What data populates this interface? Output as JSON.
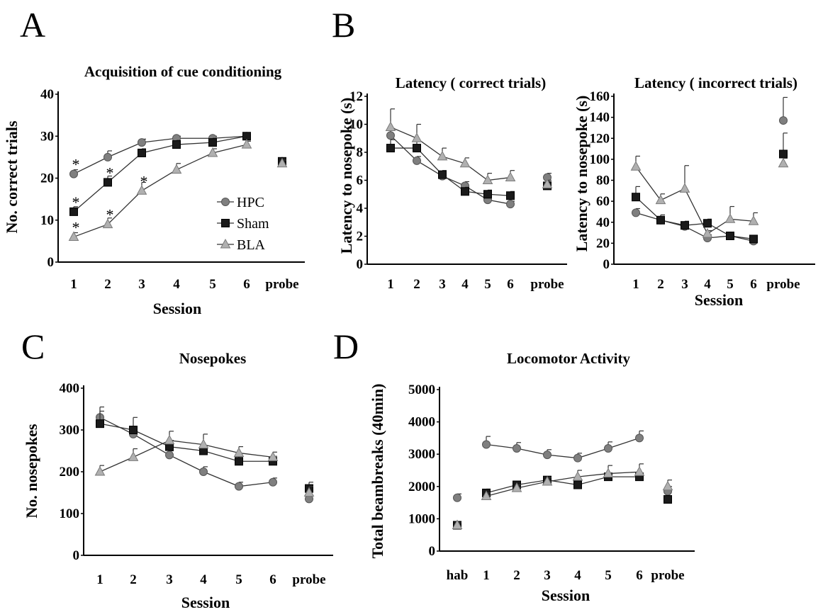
{
  "chart_data": [
    {
      "panel": "A",
      "type": "line",
      "title": "Acquisition of  cue conditioning",
      "xlabel": "Session",
      "ylabel": "No. correct trials",
      "categories": [
        "1",
        "2",
        "3",
        "4",
        "5",
        "6",
        "probe"
      ],
      "ylim": [
        0,
        40
      ],
      "yticks": [
        "0",
        "10",
        "20",
        "30",
        "40"
      ],
      "legend": "center-right",
      "series": [
        {
          "name": "HPC",
          "marker": "circle",
          "values": [
            21,
            25,
            28.5,
            29.5,
            29.5,
            30,
            24
          ],
          "err": [
            1,
            1.5,
            0.8,
            0.5,
            0.5,
            0.3,
            0.8
          ]
        },
        {
          "name": "Sham",
          "marker": "square",
          "values": [
            12,
            19,
            26,
            28,
            28.5,
            30,
            24
          ],
          "err": [
            1.2,
            1.5,
            1,
            1,
            1,
            0.3,
            0.8
          ]
        },
        {
          "name": "BLA",
          "marker": "triangle",
          "values": [
            6,
            9,
            17,
            22,
            26,
            28,
            23.5
          ],
          "err": [
            1,
            1.5,
            2,
            1.5,
            1,
            0.8,
            0.8
          ]
        }
      ],
      "annotations": [
        {
          "text": "*",
          "category": "1",
          "series": "HPC"
        },
        {
          "text": "*",
          "category": "1",
          "series": "Sham"
        },
        {
          "text": "*",
          "category": "1",
          "series": "BLA"
        },
        {
          "text": "*",
          "category": "2",
          "series": "Sham"
        },
        {
          "text": "*",
          "category": "2",
          "series": "BLA"
        },
        {
          "text": "*",
          "category": "3",
          "series": "BLA"
        }
      ]
    },
    {
      "panel": "B",
      "type": "line",
      "title": "Latency ( correct  trials)",
      "xlabel": "",
      "ylabel": "Latency to nosepoke (s)",
      "categories": [
        "1",
        "2",
        "3",
        "4",
        "5",
        "6",
        "probe"
      ],
      "ylim": [
        0,
        12
      ],
      "yticks": [
        "0",
        "2",
        "4",
        "6",
        "8",
        "10",
        "12"
      ],
      "series": [
        {
          "name": "HPC",
          "marker": "circle",
          "values": [
            9.2,
            7.4,
            6.3,
            5.6,
            4.6,
            4.3,
            6.2
          ],
          "err": [
            0.5,
            0.3,
            0.3,
            0.3,
            0.2,
            0.2,
            0.3
          ]
        },
        {
          "name": "Sham",
          "marker": "square",
          "values": [
            8.3,
            8.3,
            6.4,
            5.2,
            5.0,
            4.9,
            5.6
          ],
          "err": [
            0.6,
            0.5,
            0.3,
            0.3,
            0.3,
            0.3,
            0.3
          ]
        },
        {
          "name": "BLA",
          "marker": "triangle",
          "values": [
            9.8,
            9.0,
            7.7,
            7.2,
            6.0,
            6.2,
            5.7
          ],
          "err": [
            1.3,
            1.0,
            0.6,
            0.4,
            0.5,
            0.5,
            0.3
          ]
        }
      ]
    },
    {
      "panel": "B2",
      "type": "line",
      "title": "Latency ( incorrect  trials)",
      "xlabel": "Session",
      "ylabel": "Latency to nosepoke (s)",
      "categories": [
        "1",
        "2",
        "3",
        "4",
        "5",
        "6",
        "probe"
      ],
      "ylim": [
        0,
        160
      ],
      "yticks": [
        "0",
        "20",
        "40",
        "60",
        "80",
        "100",
        "120",
        "140",
        "160"
      ],
      "series": [
        {
          "name": "HPC",
          "marker": "circle",
          "values": [
            49,
            42,
            36,
            25,
            27,
            22,
            137
          ],
          "err": [
            4,
            3,
            3,
            3,
            3,
            3,
            22
          ]
        },
        {
          "name": "Sham",
          "marker": "square",
          "values": [
            64,
            42,
            37,
            39,
            27,
            24,
            105
          ],
          "err": [
            10,
            5,
            4,
            4,
            3,
            3,
            20
          ]
        },
        {
          "name": "BLA",
          "marker": "triangle",
          "values": [
            93,
            61,
            72,
            29,
            43,
            41,
            96
          ],
          "err": [
            10,
            6,
            22,
            3,
            12,
            8,
            5
          ]
        }
      ]
    },
    {
      "panel": "C",
      "type": "line",
      "title": "Nosepokes",
      "xlabel": "Session",
      "ylabel": "No. nosepokes",
      "categories": [
        "1",
        "2",
        "3",
        "4",
        "5",
        "6",
        "probe"
      ],
      "ylim": [
        0,
        400
      ],
      "yticks": [
        "0",
        "100",
        "200",
        "300",
        "400"
      ],
      "series": [
        {
          "name": "HPC",
          "marker": "circle",
          "values": [
            330,
            290,
            240,
            200,
            165,
            175,
            135
          ],
          "err": [
            25,
            15,
            10,
            12,
            10,
            10,
            8
          ]
        },
        {
          "name": "Sham",
          "marker": "square",
          "values": [
            315,
            300,
            260,
            250,
            225,
            225,
            160
          ],
          "err": [
            30,
            30,
            15,
            12,
            12,
            12,
            15
          ]
        },
        {
          "name": "BLA",
          "marker": "triangle",
          "values": [
            200,
            235,
            275,
            265,
            245,
            235,
            150
          ],
          "err": [
            15,
            20,
            22,
            25,
            15,
            12,
            15
          ]
        }
      ]
    },
    {
      "panel": "D",
      "type": "line",
      "title": "Locomotor Activity",
      "xlabel": "Session",
      "ylabel": "Total beambreaks (40min)",
      "categories": [
        "hab",
        "1",
        "2",
        "3",
        "4",
        "5",
        "6",
        "probe"
      ],
      "ylim": [
        0,
        5000
      ],
      "yticks": [
        "0",
        "1000",
        "2000",
        "3000",
        "4000",
        "5000"
      ],
      "series": [
        {
          "name": "HPC",
          "marker": "circle",
          "values": [
            1650,
            3300,
            3180,
            2980,
            2880,
            3180,
            3500,
            1850
          ],
          "err": [
            120,
            250,
            180,
            160,
            150,
            200,
            220,
            150
          ]
        },
        {
          "name": "Sham",
          "marker": "square",
          "values": [
            800,
            1800,
            2050,
            2200,
            2050,
            2300,
            2300,
            1600
          ],
          "err": [
            80,
            120,
            100,
            100,
            100,
            100,
            100,
            100
          ]
        },
        {
          "name": "BLA",
          "marker": "triangle",
          "values": [
            800,
            1700,
            1950,
            2150,
            2300,
            2400,
            2450,
            2000
          ],
          "err": [
            80,
            100,
            100,
            120,
            200,
            250,
            250,
            200
          ]
        }
      ]
    }
  ],
  "panel_labels": [
    "A",
    "B",
    "C",
    "D"
  ]
}
